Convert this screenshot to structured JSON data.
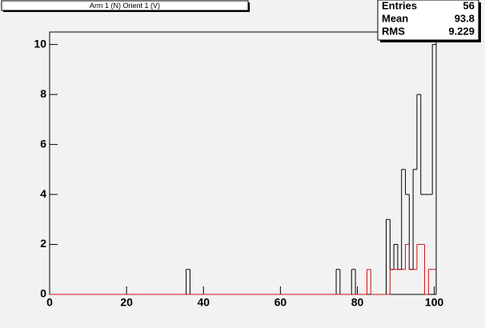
{
  "chart_data": {
    "type": "histogram",
    "title": "Arm 1 (N) Orient 1 (V)",
    "bins": [
      -0.5,
      0.5,
      1.5,
      2.5,
      3.5,
      4.5,
      5.5,
      6.5,
      7.5,
      8.5,
      9.5,
      10.5,
      11.5,
      12.5,
      13.5,
      14.5,
      15.5,
      16.5,
      17.5,
      18.5,
      19.5,
      20.5,
      21.5,
      22.5,
      23.5,
      24.5,
      25.5,
      26.5,
      27.5,
      28.5,
      29.5,
      30.5,
      31.5,
      32.5,
      33.5,
      34.5,
      35.5,
      36.5,
      37.5,
      38.5,
      39.5,
      40.5,
      41.5,
      42.5,
      43.5,
      44.5,
      45.5,
      46.5,
      47.5,
      48.5,
      49.5,
      50.5,
      51.5,
      52.5,
      53.5,
      54.5,
      55.5,
      56.5,
      57.5,
      58.5,
      59.5,
      60.5,
      61.5,
      62.5,
      63.5,
      64.5,
      65.5,
      66.5,
      67.5,
      68.5,
      69.5,
      70.5,
      71.5,
      72.5,
      73.5,
      74.5,
      75.5,
      76.5,
      77.5,
      78.5,
      79.5,
      80.5,
      81.5,
      82.5,
      83.5,
      84.5,
      85.5,
      86.5,
      87.5,
      88.5,
      89.5,
      90.5,
      91.5,
      92.5,
      93.5,
      94.5,
      95.5,
      96.5,
      97.5,
      98.5,
      99.5,
      100.5
    ],
    "series": [
      {
        "color": "#000000",
        "values": [
          0,
          0,
          0,
          0,
          0,
          0,
          0,
          0,
          0,
          0,
          0,
          0,
          0,
          0,
          0,
          0,
          0,
          0,
          0,
          0,
          0,
          0,
          0,
          0,
          0,
          0,
          0,
          0,
          0,
          0,
          0,
          0,
          0,
          0,
          0,
          0,
          1,
          0,
          0,
          0,
          0,
          0,
          0,
          0,
          0,
          0,
          0,
          0,
          0,
          0,
          0,
          0,
          0,
          0,
          0,
          0,
          0,
          0,
          0,
          0,
          0,
          0,
          0,
          0,
          0,
          0,
          0,
          0,
          0,
          0,
          0,
          0,
          0,
          0,
          0,
          1,
          0,
          0,
          0,
          1,
          0,
          0,
          0,
          0,
          0,
          0,
          0,
          0,
          3,
          1,
          2,
          1,
          5,
          4,
          1,
          5,
          8,
          4,
          4,
          4,
          10
        ]
      },
      {
        "color": "#d01010",
        "values": [
          0,
          0,
          0,
          0,
          0,
          0,
          0,
          0,
          0,
          0,
          0,
          0,
          0,
          0,
          0,
          0,
          0,
          0,
          0,
          0,
          0,
          0,
          0,
          0,
          0,
          0,
          0,
          0,
          0,
          0,
          0,
          0,
          0,
          0,
          0,
          0,
          0,
          0,
          0,
          0,
          0,
          0,
          0,
          0,
          0,
          0,
          0,
          0,
          0,
          0,
          0,
          0,
          0,
          0,
          0,
          0,
          0,
          0,
          0,
          0,
          0,
          0,
          0,
          0,
          0,
          0,
          0,
          0,
          0,
          0,
          0,
          0,
          0,
          0,
          0,
          0,
          0,
          0,
          0,
          0,
          0,
          0,
          0,
          1,
          0,
          0,
          0,
          0,
          0,
          1,
          1,
          1,
          1,
          2,
          1,
          1,
          2,
          2,
          0,
          1,
          1
        ]
      }
    ],
    "xlim": [
      0,
      100.5
    ],
    "xticks": [
      0,
      20,
      40,
      60,
      80,
      100
    ],
    "ylim": [
      0,
      10.5
    ],
    "yticks": [
      0,
      2,
      4,
      6,
      8,
      10
    ],
    "stats": [
      {
        "label": "Entries",
        "value": 56
      },
      {
        "label": "Mean",
        "value": 93.8
      },
      {
        "label": "RMS",
        "value": 9.229
      }
    ]
  }
}
